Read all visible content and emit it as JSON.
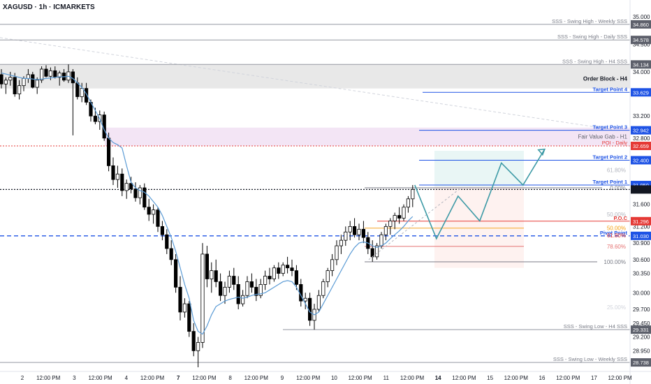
{
  "header": {
    "title": "XAGUSD · 1h · ICMARKETS"
  },
  "colors": {
    "up": "#000000",
    "down": "#000000",
    "ma": "#5b9bd5",
    "target": "#1e53e5",
    "poi": "#e53935",
    "poc": "#e53935",
    "pivot": "#1e53e5",
    "projection": "#3d9aa6",
    "swing": "#787b86",
    "order_block_fill": "#e8e8e8",
    "fvg_fill": "#f3e5f5"
  },
  "chart_data": {
    "type": "candlestick",
    "symbol": "XAGUSD",
    "timeframe": "1h",
    "broker": "ICMARKETS",
    "ylim": [
      28.6,
      35.2
    ],
    "y_ticks": [
      {
        "label": "35.000",
        "value": 35.0
      },
      {
        "label": "34.500",
        "value": 34.5
      },
      {
        "label": "34.000",
        "value": 34.0
      },
      {
        "label": "33.200",
        "value": 33.2
      },
      {
        "label": "32.800",
        "value": 32.8
      },
      {
        "label": "31.600",
        "value": 31.6
      },
      {
        "label": "31.200",
        "value": 31.2
      },
      {
        "label": "30.900",
        "value": 30.9
      },
      {
        "label": "30.600",
        "value": 30.6
      },
      {
        "label": "30.350",
        "value": 30.35
      },
      {
        "label": "30.000",
        "value": 30.0
      },
      {
        "label": "29.700",
        "value": 29.7
      },
      {
        "label": "29.450",
        "value": 29.45
      },
      {
        "label": "29.200",
        "value": 29.2
      },
      {
        "label": "28.950",
        "value": 28.95
      }
    ],
    "x_ticks": [
      {
        "label": "2",
        "bold": false
      },
      {
        "label": "12:00 PM",
        "bold": false
      },
      {
        "label": "3",
        "bold": false
      },
      {
        "label": "12:00 PM",
        "bold": false
      },
      {
        "label": "4",
        "bold": false
      },
      {
        "label": "12:00 PM",
        "bold": false
      },
      {
        "label": "7",
        "bold": true
      },
      {
        "label": "12:00 PM",
        "bold": false
      },
      {
        "label": "8",
        "bold": false
      },
      {
        "label": "12:00 PM",
        "bold": false
      },
      {
        "label": "9",
        "bold": false
      },
      {
        "label": "12:00 PM",
        "bold": false
      },
      {
        "label": "10",
        "bold": false
      },
      {
        "label": "12:00 PM",
        "bold": false
      },
      {
        "label": "11",
        "bold": false
      },
      {
        "label": "12:00 PM",
        "bold": false
      },
      {
        "label": "14",
        "bold": true
      },
      {
        "label": "12:00 PM",
        "bold": false
      },
      {
        "label": "15",
        "bold": false
      },
      {
        "label": "12:00 PM",
        "bold": false
      },
      {
        "label": "16",
        "bold": false
      },
      {
        "label": "12:00 PM",
        "bold": false
      },
      {
        "label": "17",
        "bold": false
      },
      {
        "label": "12:00 PM",
        "bold": false
      }
    ],
    "levels": [
      {
        "label": "SSS - Swing High - Weekly SSS",
        "value": 34.86,
        "price_tag": "34.860",
        "kind": "swing"
      },
      {
        "label": "SSS - Swing High - Daily SSS",
        "value": 34.578,
        "price_tag": "34.578",
        "kind": "swing"
      },
      {
        "label": "SSS - Swing High - H4 SSS",
        "value": 34.134,
        "price_tag": "34.134",
        "kind": "swing"
      },
      {
        "label": "Target Point 4",
        "value": 33.629,
        "price_tag": "33.629",
        "kind": "target"
      },
      {
        "label": "Target Point 3",
        "value": 32.942,
        "price_tag": "32.942",
        "kind": "target"
      },
      {
        "label": "POI - Daily",
        "value": 32.659,
        "price_tag": "32.659",
        "kind": "poi"
      },
      {
        "label": "Target Point 2",
        "value": 32.4,
        "price_tag": "32.400",
        "kind": "target"
      },
      {
        "label": "Target Point 1",
        "value": 31.95,
        "price_tag": "31.950",
        "kind": "target"
      },
      {
        "label": "P.O.C",
        "value": 31.296,
        "price_tag": "31.296",
        "kind": "poc"
      },
      {
        "label": "Pivot Point",
        "value": 31.03,
        "price_tag": "31.030",
        "kind": "pivot"
      },
      {
        "label": "SSS - Swing Low - H4 SSS",
        "value": 29.331,
        "price_tag": "29.331",
        "kind": "swing"
      },
      {
        "label": "SSS - Swing Low - Weekly SSS",
        "value": 28.738,
        "price_tag": "28.738",
        "kind": "swing"
      }
    ],
    "zones": [
      {
        "label": "Order Block - H4",
        "from": 33.7,
        "to": 34.134
      },
      {
        "label": "Fair Value Gab - H1",
        "from": 32.659,
        "to": 32.99
      }
    ],
    "fibonacci": [
      {
        "label": "0.00%",
        "value": 31.9
      },
      {
        "label": "61.80%",
        "value": 32.22
      },
      {
        "label": "50.00%",
        "value": 31.42
      },
      {
        "label": "50.00%",
        "value": 31.17
      },
      {
        "label": "61.80%",
        "value": 31.04
      },
      {
        "label": "78.60%",
        "value": 30.84
      },
      {
        "label": "100.00%",
        "value": 30.56
      },
      {
        "label": "25.00%",
        "value": 29.74
      }
    ],
    "current_price": 31.87,
    "ohlc": [
      [
        33.95,
        34.05,
        33.7,
        33.78
      ],
      [
        33.78,
        33.9,
        33.6,
        33.85
      ],
      [
        33.85,
        34.0,
        33.75,
        33.9
      ],
      [
        33.9,
        33.98,
        33.55,
        33.6
      ],
      [
        33.6,
        33.85,
        33.5,
        33.75
      ],
      [
        33.75,
        33.92,
        33.65,
        33.88
      ],
      [
        33.88,
        34.05,
        33.8,
        33.95
      ],
      [
        33.95,
        34.0,
        33.7,
        33.72
      ],
      [
        33.72,
        33.9,
        33.6,
        33.85
      ],
      [
        33.85,
        34.1,
        33.8,
        34.05
      ],
      [
        34.05,
        34.12,
        33.9,
        33.92
      ],
      [
        33.92,
        34.08,
        33.85,
        34.02
      ],
      [
        34.02,
        34.1,
        33.88,
        33.9
      ],
      [
        33.9,
        34.02,
        33.75,
        33.98
      ],
      [
        33.98,
        34.05,
        33.82,
        33.85
      ],
      [
        33.85,
        34.134,
        33.8,
        34.0
      ],
      [
        34.0,
        34.05,
        32.85,
        33.8
      ],
      [
        33.8,
        33.9,
        33.5,
        33.55
      ],
      [
        33.55,
        33.8,
        33.45,
        33.7
      ],
      [
        33.7,
        33.8,
        33.4,
        33.45
      ],
      [
        33.45,
        33.5,
        33.1,
        33.2
      ],
      [
        33.2,
        33.35,
        33.05,
        33.1
      ],
      [
        33.1,
        33.3,
        32.95,
        33.22
      ],
      [
        33.22,
        33.28,
        32.75,
        32.8
      ],
      [
        32.8,
        32.9,
        32.2,
        32.3
      ],
      [
        32.3,
        32.45,
        31.95,
        32.05
      ],
      [
        32.05,
        32.3,
        31.9,
        32.15
      ],
      [
        32.15,
        32.25,
        31.75,
        31.85
      ],
      [
        31.85,
        32.05,
        31.7,
        31.98
      ],
      [
        31.98,
        32.1,
        31.8,
        31.88
      ],
      [
        31.88,
        32.0,
        31.65,
        31.72
      ],
      [
        31.72,
        31.95,
        31.6,
        31.9
      ],
      [
        31.9,
        31.98,
        31.5,
        31.55
      ],
      [
        31.55,
        31.7,
        31.3,
        31.42
      ],
      [
        31.42,
        31.6,
        31.25,
        31.5
      ],
      [
        31.5,
        31.55,
        31.1,
        31.2
      ],
      [
        31.2,
        31.3,
        30.95,
        31.05
      ],
      [
        31.05,
        31.15,
        30.7,
        30.8
      ],
      [
        30.8,
        30.95,
        30.5,
        30.6
      ],
      [
        30.6,
        30.7,
        30.0,
        30.1
      ],
      [
        30.1,
        30.3,
        29.5,
        29.65
      ],
      [
        29.65,
        29.9,
        29.55,
        29.8
      ],
      [
        29.8,
        29.85,
        29.2,
        29.3
      ],
      [
        29.3,
        29.45,
        28.85,
        28.95
      ],
      [
        28.95,
        29.2,
        28.65,
        29.1
      ],
      [
        29.1,
        30.9,
        29.0,
        30.7
      ],
      [
        30.7,
        30.85,
        30.1,
        30.25
      ],
      [
        30.25,
        30.55,
        30.0,
        30.4
      ],
      [
        30.4,
        30.6,
        30.1,
        30.2
      ],
      [
        30.2,
        30.35,
        29.85,
        29.95
      ],
      [
        29.95,
        30.2,
        29.8,
        30.1
      ],
      [
        30.1,
        30.4,
        30.0,
        30.3
      ],
      [
        30.3,
        30.45,
        30.05,
        30.15
      ],
      [
        30.15,
        30.3,
        29.7,
        29.8
      ],
      [
        29.8,
        30.05,
        29.75,
        29.95
      ],
      [
        29.95,
        30.3,
        29.9,
        30.2
      ],
      [
        30.2,
        30.35,
        30.0,
        30.1
      ],
      [
        30.1,
        30.25,
        29.85,
        29.95
      ],
      [
        29.95,
        30.25,
        29.9,
        30.15
      ],
      [
        30.15,
        30.4,
        30.05,
        30.3
      ],
      [
        30.3,
        30.45,
        30.15,
        30.25
      ],
      [
        30.25,
        30.5,
        30.2,
        30.45
      ],
      [
        30.45,
        30.55,
        30.25,
        30.35
      ],
      [
        30.35,
        30.55,
        30.3,
        30.5
      ],
      [
        30.5,
        30.65,
        30.35,
        30.45
      ],
      [
        30.45,
        30.6,
        30.3,
        30.4
      ],
      [
        30.4,
        30.5,
        30.05,
        30.15
      ],
      [
        30.15,
        30.25,
        29.75,
        29.85
      ],
      [
        29.85,
        30.0,
        29.7,
        29.9
      ],
      [
        29.9,
        30.0,
        29.4,
        29.5
      ],
      [
        29.5,
        29.8,
        29.331,
        29.7
      ],
      [
        29.7,
        30.05,
        29.65,
        29.95
      ],
      [
        29.95,
        30.25,
        29.9,
        30.2
      ],
      [
        30.2,
        30.45,
        30.1,
        30.4
      ],
      [
        30.4,
        30.7,
        30.3,
        30.6
      ],
      [
        30.6,
        30.95,
        30.5,
        30.85
      ],
      [
        30.85,
        31.05,
        30.7,
        30.95
      ],
      [
        30.95,
        31.2,
        30.85,
        31.1
      ],
      [
        31.1,
        31.3,
        30.95,
        31.2
      ],
      [
        31.2,
        31.35,
        31.0,
        31.05
      ],
      [
        31.05,
        31.25,
        30.95,
        31.15
      ],
      [
        31.15,
        31.3,
        30.9,
        31.0
      ],
      [
        31.0,
        31.1,
        30.7,
        30.8
      ],
      [
        30.8,
        30.95,
        30.56,
        30.65
      ],
      [
        30.65,
        30.9,
        30.6,
        30.85
      ],
      [
        30.85,
        31.1,
        30.8,
        31.05
      ],
      [
        31.05,
        31.25,
        30.95,
        31.2
      ],
      [
        31.2,
        31.35,
        31.05,
        31.3
      ],
      [
        31.3,
        31.45,
        31.15,
        31.4
      ],
      [
        31.4,
        31.55,
        31.25,
        31.35
      ],
      [
        31.35,
        31.6,
        31.3,
        31.55
      ],
      [
        31.55,
        31.75,
        31.45,
        31.7
      ],
      [
        31.7,
        31.95,
        31.55,
        31.87
      ]
    ],
    "ma": [
      33.98,
      33.96,
      33.94,
      33.92,
      33.9,
      33.88,
      33.88,
      33.87,
      33.86,
      33.87,
      33.88,
      33.89,
      33.9,
      33.91,
      33.91,
      33.92,
      33.88,
      33.8,
      33.72,
      33.6,
      33.45,
      33.3,
      33.15,
      32.95,
      32.8,
      32.72,
      32.68,
      32.62,
      32.3,
      32.0,
      31.9,
      31.85,
      31.82,
      31.75,
      31.65,
      31.55,
      31.4,
      31.2,
      31.0,
      30.75,
      30.45,
      30.15,
      29.9,
      29.5,
      29.3,
      29.25,
      29.4,
      29.6,
      29.75,
      29.8,
      29.85,
      29.88,
      29.9,
      29.92,
      29.9,
      29.92,
      29.95,
      29.97,
      29.98,
      30.0,
      30.05,
      30.1,
      30.15,
      30.2,
      30.22,
      30.2,
      30.1,
      29.95,
      29.8,
      29.65,
      29.6,
      29.65,
      29.8,
      29.95,
      30.1,
      30.25,
      30.4,
      30.55,
      30.7,
      30.82,
      30.9,
      30.92,
      30.9,
      30.85,
      30.82,
      30.85,
      30.9,
      30.98,
      31.05,
      31.12,
      31.2,
      31.3,
      31.38
    ],
    "projection": [
      31.95,
      30.98,
      31.75,
      31.3,
      32.35,
      31.95,
      32.6
    ]
  }
}
